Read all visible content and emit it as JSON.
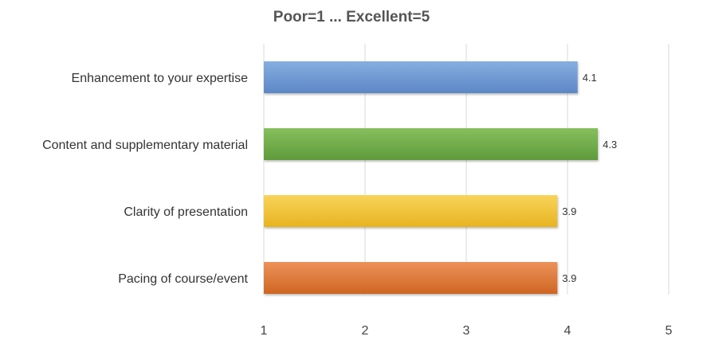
{
  "chart_data": {
    "type": "bar",
    "orientation": "horizontal",
    "title": "Poor=1 ... Excellent=5",
    "xlabel": "",
    "ylabel": "",
    "xlim": [
      1,
      5
    ],
    "x_ticks": [
      "1",
      "2",
      "3",
      "4",
      "5"
    ],
    "grid": true,
    "categories": [
      "Enhancement to your expertise",
      "Content and supplementary material",
      "Clarity of presentation",
      "Pacing of course/event"
    ],
    "values": [
      4.1,
      4.3,
      3.9,
      3.9
    ],
    "data_labels": [
      "4.1",
      "4.3",
      "3.9",
      "3.9"
    ],
    "colors": [
      "#6f9bd4",
      "#72ac4c",
      "#f1c232",
      "#e0762f"
    ]
  }
}
